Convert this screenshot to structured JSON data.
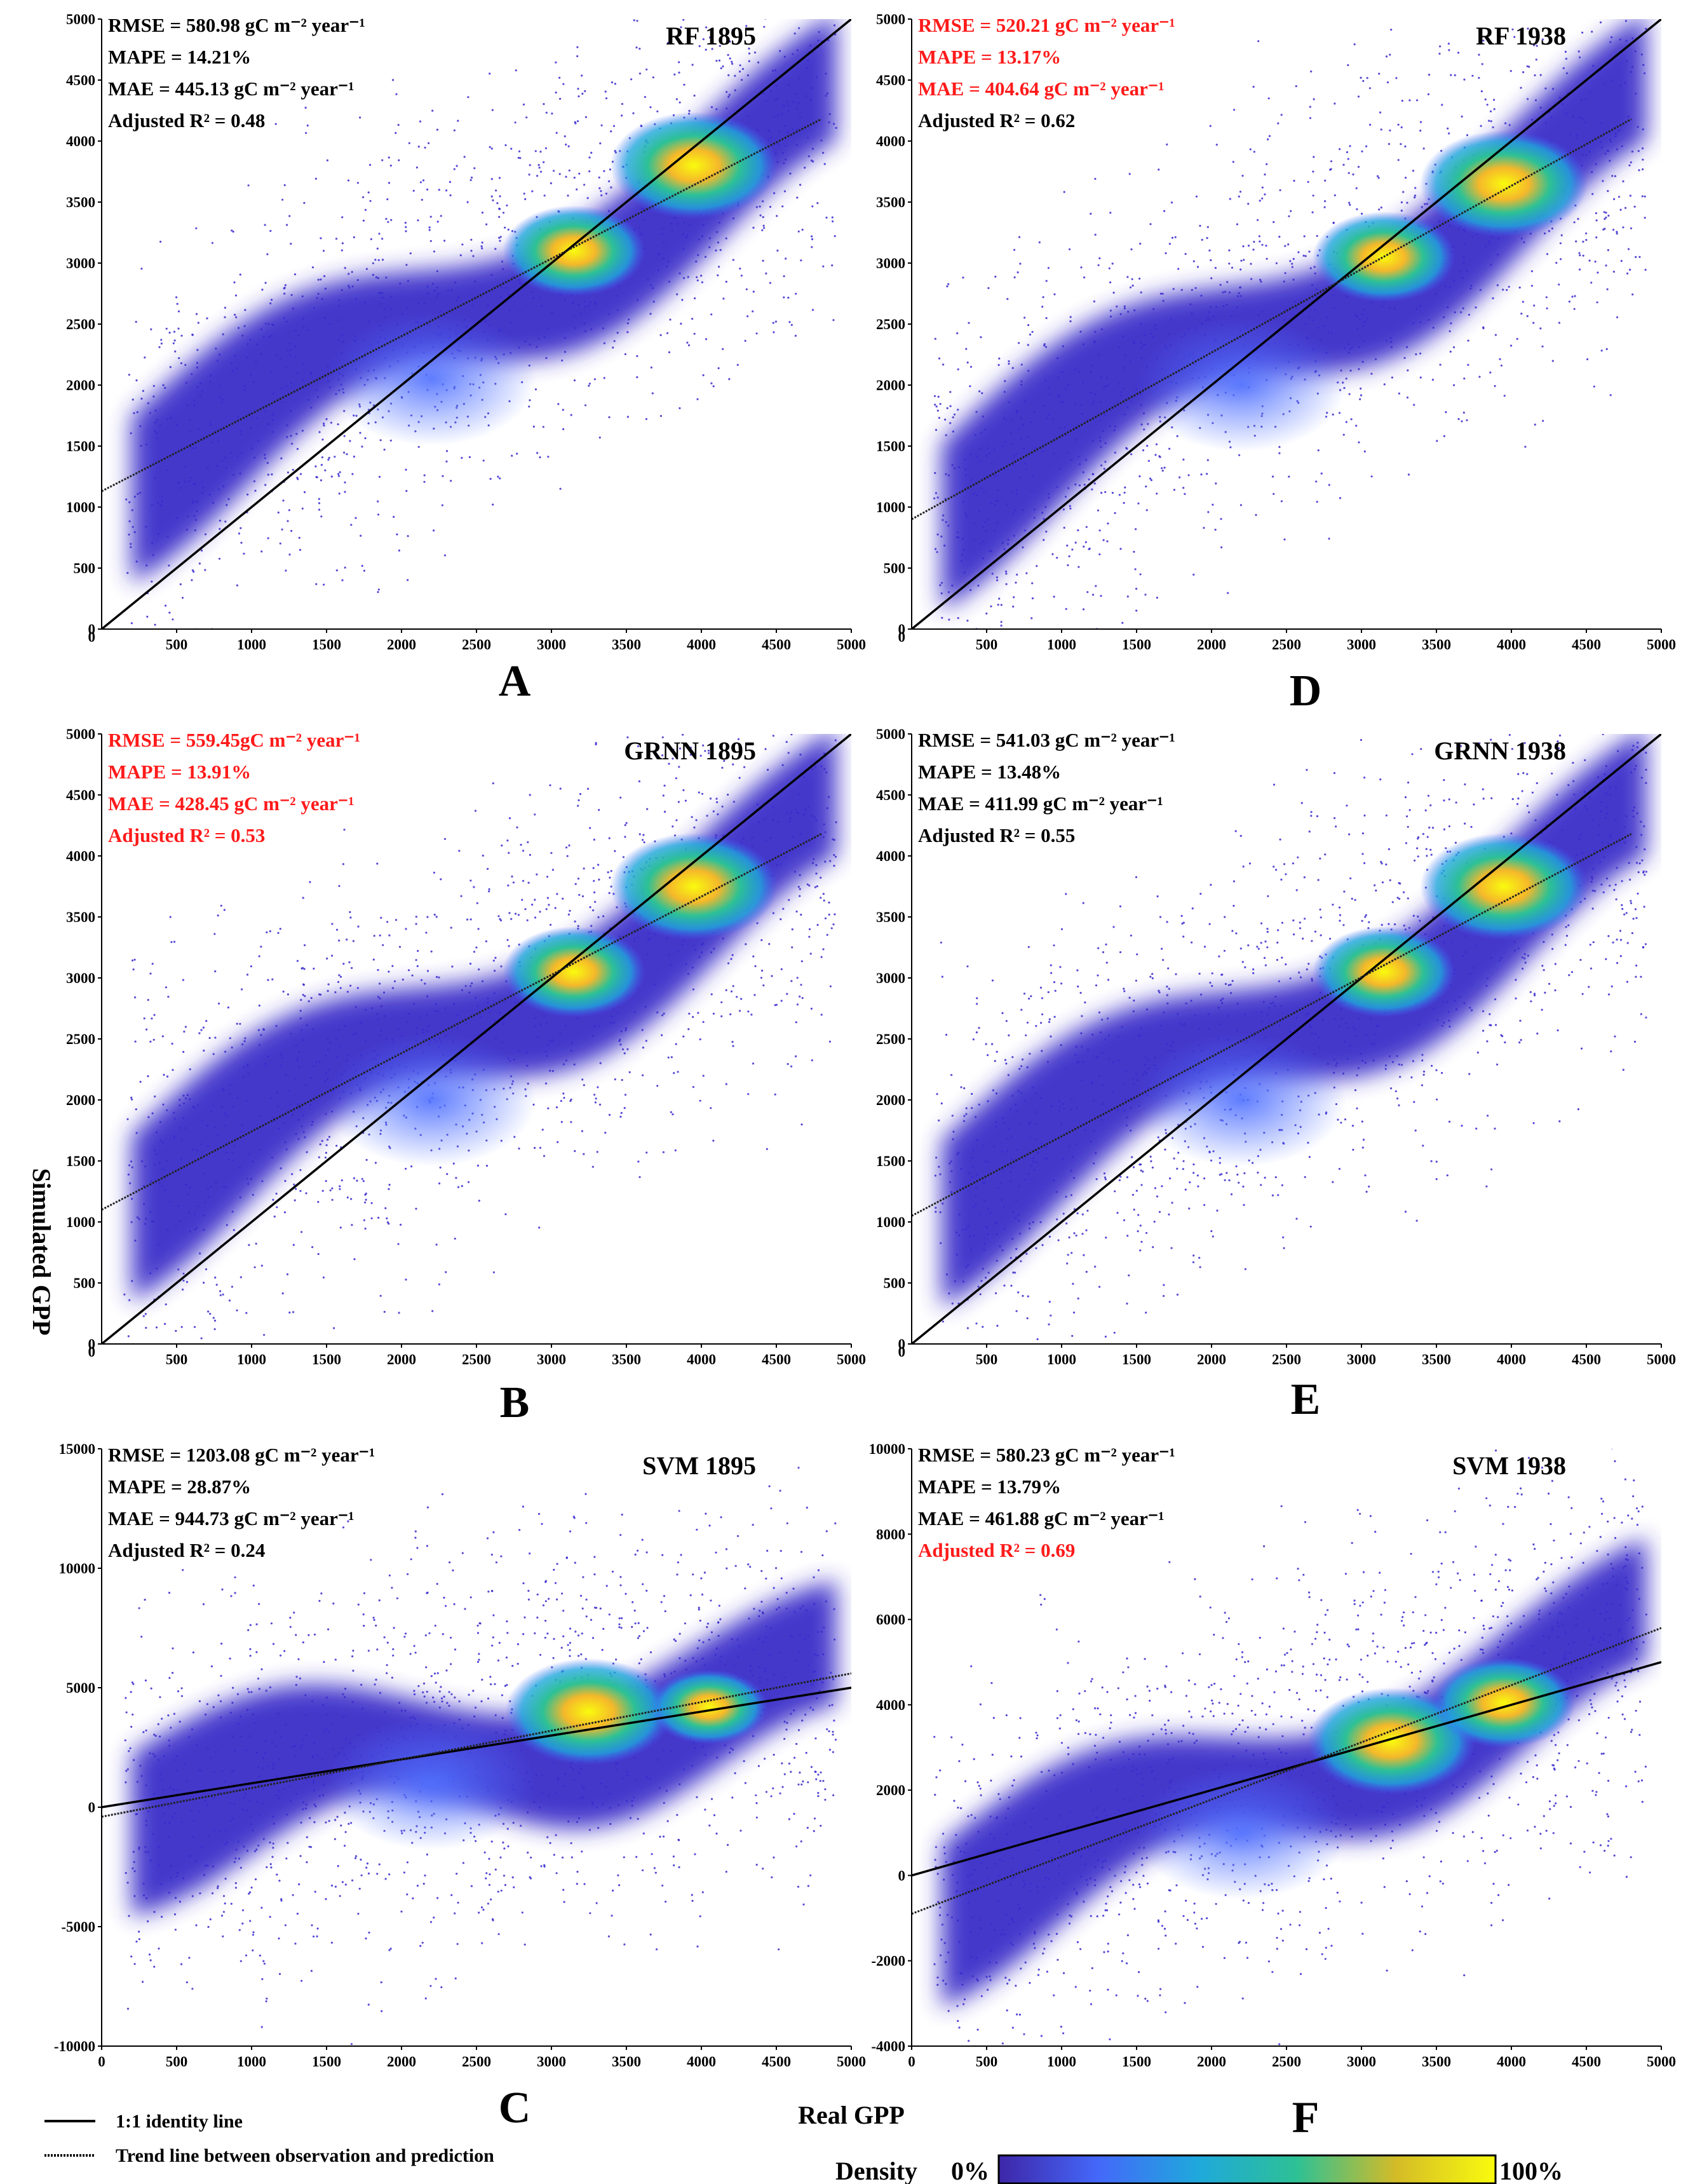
{
  "figure": {
    "y_label": "Simulated GPP",
    "x_label": "Real GPP",
    "legend": {
      "identity": "1:1 identity line",
      "trend": "Trend line between observation and prediction",
      "density_label": "Density",
      "density_min": "0%",
      "density_max": "100%"
    },
    "colors": {
      "highlight": "#ff1a1a",
      "text": "#000000",
      "scatter": "#3a2ccc"
    }
  },
  "chart_data": [
    {
      "panel": "A",
      "type": "scatter",
      "title": "RF 1895",
      "xlim": [
        0,
        5000
      ],
      "ylim": [
        0,
        5000
      ],
      "xticks": [
        500,
        1000,
        1500,
        2000,
        2500,
        3000,
        3500,
        4000,
        4500,
        5000
      ],
      "yticks": [
        0,
        500,
        1000,
        1500,
        2000,
        2500,
        3000,
        3500,
        4000,
        4500,
        5000
      ],
      "stats": [
        {
          "text": "RMSE = 580.98 gC m⁻² year⁻¹",
          "red": false
        },
        {
          "text": "MAPE = 14.21%",
          "red": false
        },
        {
          "text": "MAE = 445.13 gC m⁻² year⁻¹",
          "red": false
        },
        {
          "text": "Adjusted R² = 0.48",
          "red": false
        }
      ],
      "identity_line": [
        [
          0,
          0
        ],
        [
          5000,
          5000
        ]
      ],
      "trend_line": [
        [
          0,
          1130
        ],
        [
          4800,
          4180
        ]
      ],
      "density_hotspots": [
        [
          3950,
          3800,
          1.0
        ],
        [
          3150,
          3100,
          0.85
        ],
        [
          2200,
          2050,
          0.35
        ]
      ]
    },
    {
      "panel": "D",
      "type": "scatter",
      "title": "RF 1938",
      "xlim": [
        0,
        5000
      ],
      "ylim": [
        0,
        5000
      ],
      "xticks": [
        500,
        1000,
        1500,
        2000,
        2500,
        3000,
        3500,
        4000,
        4500,
        5000
      ],
      "yticks": [
        0,
        500,
        1000,
        1500,
        2000,
        2500,
        3000,
        3500,
        4000,
        4500,
        5000
      ],
      "stats": [
        {
          "text": "RMSE = 520.21 gC m⁻² year⁻¹",
          "red": true
        },
        {
          "text": "MAPE = 13.17%",
          "red": true
        },
        {
          "text": "MAE = 404.64 gC m⁻² year⁻¹",
          "red": true
        },
        {
          "text": "Adjusted R² = 0.62",
          "red": false
        }
      ],
      "identity_line": [
        [
          0,
          0
        ],
        [
          5000,
          5000
        ]
      ],
      "trend_line": [
        [
          0,
          900
        ],
        [
          4800,
          4180
        ]
      ],
      "density_hotspots": [
        [
          3950,
          3650,
          1.0
        ],
        [
          3150,
          3050,
          0.85
        ],
        [
          2200,
          2000,
          0.35
        ]
      ]
    },
    {
      "panel": "B",
      "type": "scatter",
      "title": "GRNN 1895",
      "xlim": [
        0,
        5000
      ],
      "ylim": [
        0,
        5000
      ],
      "xticks": [
        500,
        1000,
        1500,
        2000,
        2500,
        3000,
        3500,
        4000,
        4500,
        5000
      ],
      "yticks": [
        0,
        500,
        1000,
        1500,
        2000,
        2500,
        3000,
        3500,
        4000,
        4500,
        5000
      ],
      "stats": [
        {
          "text": "RMSE = 559.45gC m⁻² year⁻¹",
          "red": true
        },
        {
          "text": "MAPE = 13.91%",
          "red": true
        },
        {
          "text": "MAE = 428.45 gC m⁻² year⁻¹",
          "red": true
        },
        {
          "text": "Adjusted R² = 0.53",
          "red": true
        }
      ],
      "identity_line": [
        [
          0,
          0
        ],
        [
          5000,
          5000
        ]
      ],
      "trend_line": [
        [
          0,
          1100
        ],
        [
          4800,
          4180
        ]
      ],
      "density_hotspots": [
        [
          3950,
          3750,
          1.0
        ],
        [
          3150,
          3050,
          0.85
        ],
        [
          2200,
          2000,
          0.35
        ]
      ]
    },
    {
      "panel": "E",
      "type": "scatter",
      "title": "GRNN 1938",
      "xlim": [
        0,
        5000
      ],
      "ylim": [
        0,
        5000
      ],
      "xticks": [
        500,
        1000,
        1500,
        2000,
        2500,
        3000,
        3500,
        4000,
        4500,
        5000
      ],
      "yticks": [
        0,
        500,
        1000,
        1500,
        2000,
        2500,
        3000,
        3500,
        4000,
        4500,
        5000
      ],
      "stats": [
        {
          "text": "RMSE = 541.03 gC m⁻² year⁻¹",
          "red": false
        },
        {
          "text": "MAPE = 13.48%",
          "red": false
        },
        {
          "text": "MAE = 411.99 gC m⁻² year⁻¹",
          "red": false
        },
        {
          "text": "Adjusted R² = 0.55",
          "red": false
        }
      ],
      "identity_line": [
        [
          0,
          0
        ],
        [
          5000,
          5000
        ]
      ],
      "trend_line": [
        [
          0,
          1050
        ],
        [
          4800,
          4180
        ]
      ],
      "density_hotspots": [
        [
          3950,
          3750,
          1.0
        ],
        [
          3150,
          3050,
          0.85
        ],
        [
          2200,
          2000,
          0.35
        ]
      ]
    },
    {
      "panel": "C",
      "type": "scatter",
      "title": "SVM 1895",
      "xlim": [
        0,
        5000
      ],
      "ylim": [
        -10000,
        15000
      ],
      "xticks": [
        0,
        500,
        1000,
        1500,
        2000,
        2500,
        3000,
        3500,
        4000,
        4500,
        5000
      ],
      "yticks": [
        -10000,
        -5000,
        0,
        5000,
        10000,
        15000
      ],
      "stats": [
        {
          "text": "RMSE = 1203.08 gC m⁻² year⁻¹",
          "red": false
        },
        {
          "text": "MAPE = 28.87%",
          "red": false
        },
        {
          "text": "MAE = 944.73 gC m⁻² year⁻¹",
          "red": false
        },
        {
          "text": "Adjusted R² = 0.24",
          "red": false
        }
      ],
      "identity_line": [
        [
          0,
          0
        ],
        [
          5000,
          5000
        ]
      ],
      "trend_line": [
        [
          0,
          -400
        ],
        [
          5000,
          5600
        ]
      ],
      "density_hotspots": [
        [
          3250,
          4000,
          1.0
        ],
        [
          4050,
          4200,
          0.7
        ],
        [
          2200,
          1000,
          0.3
        ]
      ]
    },
    {
      "panel": "F",
      "type": "scatter",
      "title": "SVM 1938",
      "xlim": [
        0,
        5000
      ],
      "ylim": [
        -4000,
        10000
      ],
      "xticks": [
        0,
        500,
        1000,
        1500,
        2000,
        2500,
        3000,
        3500,
        4000,
        4500,
        5000
      ],
      "yticks": [
        -4000,
        -2000,
        0,
        2000,
        4000,
        6000,
        8000,
        10000
      ],
      "stats": [
        {
          "text": "RMSE = 580.23 gC m⁻² year⁻¹",
          "red": false
        },
        {
          "text": "MAPE = 13.79%",
          "red": false
        },
        {
          "text": "MAE = 461.88 gC m⁻² year⁻¹",
          "red": false
        },
        {
          "text": "Adjusted R² = 0.69",
          "red": true
        }
      ],
      "identity_line": [
        [
          0,
          0
        ],
        [
          5000,
          5000
        ]
      ],
      "trend_line": [
        [
          0,
          -900
        ],
        [
          5000,
          5800
        ]
      ],
      "density_hotspots": [
        [
          3200,
          3150,
          1.0
        ],
        [
          3950,
          4050,
          0.85
        ],
        [
          2200,
          1000,
          0.3
        ]
      ]
    }
  ]
}
